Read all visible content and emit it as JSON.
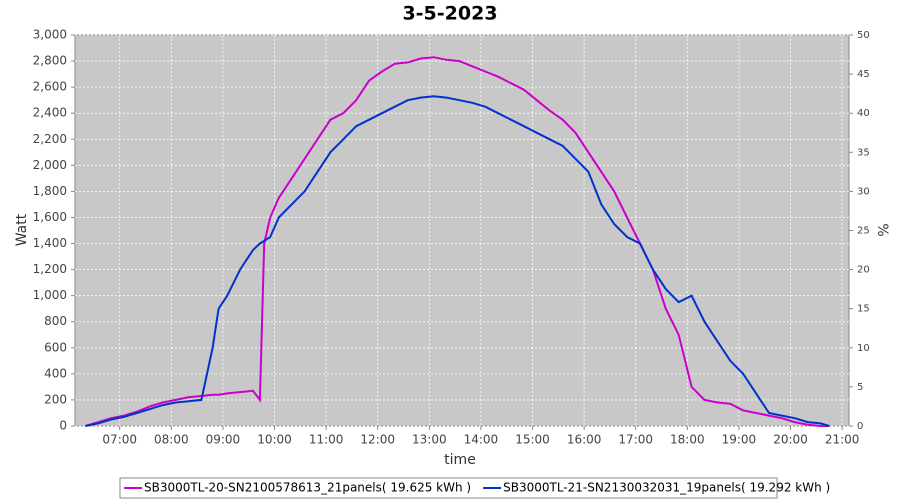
{
  "chart_data": {
    "type": "line",
    "title": "3-5-2023",
    "xlabel": "time",
    "ylabel": "Watt",
    "y2label": "%",
    "x": [
      "06:20",
      "06:35",
      "06:50",
      "07:05",
      "07:20",
      "07:35",
      "07:50",
      "08:05",
      "08:20",
      "08:35",
      "08:48",
      "08:55",
      "09:05",
      "09:20",
      "09:35",
      "09:43",
      "09:48",
      "09:55",
      "10:05",
      "10:20",
      "10:35",
      "10:50",
      "11:05",
      "11:20",
      "11:35",
      "11:50",
      "12:05",
      "12:20",
      "12:35",
      "12:50",
      "13:05",
      "13:20",
      "13:35",
      "13:50",
      "14:05",
      "14:20",
      "14:35",
      "14:50",
      "15:05",
      "15:20",
      "15:35",
      "15:50",
      "16:05",
      "16:20",
      "16:35",
      "16:50",
      "17:05",
      "17:20",
      "17:35",
      "17:50",
      "18:05",
      "18:20",
      "18:35",
      "18:50",
      "19:05",
      "19:20",
      "19:35",
      "19:50",
      "20:05",
      "20:20",
      "20:35",
      "20:45"
    ],
    "series": [
      {
        "name": "SB3000TL-20-SN2100578613_21panels( 19.625 kWh )",
        "color": "#cc00cc",
        "values": [
          0,
          30,
          60,
          80,
          110,
          150,
          180,
          200,
          220,
          230,
          240,
          240,
          250,
          260,
          270,
          200,
          1400,
          1600,
          1750,
          1900,
          2050,
          2200,
          2350,
          2400,
          2500,
          2650,
          2720,
          2780,
          2790,
          2820,
          2830,
          2810,
          2800,
          2760,
          2720,
          2680,
          2630,
          2580,
          2500,
          2420,
          2350,
          2250,
          2100,
          1950,
          1800,
          1600,
          1400,
          1200,
          900,
          700,
          300,
          200,
          180,
          170,
          120,
          100,
          80,
          60,
          30,
          10,
          0,
          0
        ]
      },
      {
        "name": "SB3000TL-21-SN2130032031_19panels( 19.292 kWh )",
        "color": "#0033cc",
        "values": [
          0,
          20,
          50,
          70,
          100,
          130,
          160,
          180,
          190,
          200,
          600,
          900,
          1000,
          1200,
          1350,
          1400,
          1420,
          1450,
          1600,
          1700,
          1800,
          1950,
          2100,
          2200,
          2300,
          2350,
          2400,
          2450,
          2500,
          2520,
          2530,
          2520,
          2500,
          2480,
          2450,
          2400,
          2350,
          2300,
          2250,
          2200,
          2150,
          2050,
          1950,
          1700,
          1550,
          1450,
          1400,
          1200,
          1050,
          950,
          1000,
          800,
          650,
          500,
          400,
          250,
          100,
          80,
          60,
          30,
          20,
          0
        ]
      }
    ],
    "xlim": [
      "06:08",
      "21:08"
    ],
    "xticks": [
      "07:00",
      "08:00",
      "09:00",
      "10:00",
      "11:00",
      "12:00",
      "13:00",
      "14:00",
      "15:00",
      "16:00",
      "17:00",
      "18:00",
      "19:00",
      "20:00",
      "21:00"
    ],
    "ylim": [
      0,
      3000
    ],
    "yticks": [
      0,
      200,
      400,
      600,
      800,
      {
        "value": 1000,
        "label": "1,000"
      },
      {
        "value": 1200,
        "label": "1,200"
      },
      {
        "value": 1400,
        "label": "1,400"
      },
      {
        "value": 1600,
        "label": "1,600"
      },
      {
        "value": 1800,
        "label": "1,800"
      },
      {
        "value": 2000,
        "label": "2,000"
      },
      {
        "value": 2200,
        "label": "2,200"
      },
      {
        "value": 2400,
        "label": "2,400"
      },
      {
        "value": 2600,
        "label": "2,600"
      },
      {
        "value": 2800,
        "label": "2,800"
      },
      {
        "value": 3000,
        "label": "3,000"
      }
    ],
    "y2lim": [
      0,
      50
    ],
    "y2ticks": [
      0,
      5,
      10,
      15,
      20,
      25,
      30,
      35,
      40,
      45,
      50
    ],
    "grid": true,
    "legend": "bottom"
  }
}
